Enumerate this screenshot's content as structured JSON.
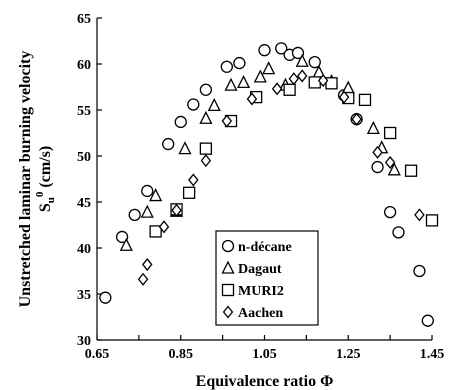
{
  "chart_data": {
    "type": "scatter",
    "xlabel": "Equivalence ratio Φ",
    "ylabel_line1": "Unstretched laminar burning velocity",
    "ylabel_line2_main": "S",
    "ylabel_line2_sub": "u",
    "ylabel_line2_sup": "0",
    "ylabel_line2_rest": " (cm/s)",
    "xlim": [
      0.65,
      1.45
    ],
    "ylim": [
      30,
      65
    ],
    "x_ticks": [
      "0.65",
      "0.85",
      "1.05",
      "1.25",
      "1.45"
    ],
    "y_ticks": [
      "30",
      "35",
      "40",
      "45",
      "50",
      "55",
      "60",
      "65"
    ],
    "legend_position": "lower-right",
    "series": [
      {
        "name": "n-décane",
        "marker": "circle",
        "points": [
          [
            0.67,
            34.6
          ],
          [
            0.71,
            41.2
          ],
          [
            0.74,
            43.6
          ],
          [
            0.77,
            46.2
          ],
          [
            0.82,
            51.3
          ],
          [
            0.85,
            53.7
          ],
          [
            0.88,
            55.6
          ],
          [
            0.91,
            57.2
          ],
          [
            0.96,
            59.7
          ],
          [
            0.99,
            60.1
          ],
          [
            1.05,
            61.5
          ],
          [
            1.09,
            61.7
          ],
          [
            1.11,
            61.0
          ],
          [
            1.13,
            61.2
          ],
          [
            1.17,
            60.2
          ],
          [
            1.24,
            56.6
          ],
          [
            1.27,
            54.0
          ],
          [
            1.32,
            48.8
          ],
          [
            1.35,
            43.9
          ],
          [
            1.37,
            41.7
          ],
          [
            1.42,
            37.5
          ],
          [
            1.44,
            32.1
          ]
        ]
      },
      {
        "name": "Dagaut",
        "marker": "triangle",
        "points": [
          [
            0.72,
            40.3
          ],
          [
            0.77,
            43.9
          ],
          [
            0.79,
            45.7
          ],
          [
            0.84,
            44.0
          ],
          [
            0.86,
            50.8
          ],
          [
            0.91,
            54.1
          ],
          [
            0.93,
            55.5
          ],
          [
            0.97,
            57.7
          ],
          [
            1.0,
            58.0
          ],
          [
            1.04,
            58.6
          ],
          [
            1.06,
            59.5
          ],
          [
            1.1,
            57.7
          ],
          [
            1.14,
            60.3
          ],
          [
            1.18,
            59.1
          ],
          [
            1.21,
            58.1
          ],
          [
            1.25,
            57.4
          ],
          [
            1.31,
            53.0
          ],
          [
            1.33,
            50.9
          ],
          [
            1.36,
            48.5
          ]
        ]
      },
      {
        "name": "MURI2",
        "marker": "square",
        "points": [
          [
            0.79,
            41.8
          ],
          [
            0.84,
            44.2
          ],
          [
            0.87,
            46.0
          ],
          [
            0.91,
            50.8
          ],
          [
            0.97,
            53.8
          ],
          [
            1.03,
            56.4
          ],
          [
            1.11,
            57.2
          ],
          [
            1.17,
            58.0
          ],
          [
            1.21,
            57.9
          ],
          [
            1.25,
            56.3
          ],
          [
            1.29,
            56.1
          ],
          [
            1.35,
            52.5
          ],
          [
            1.4,
            48.4
          ],
          [
            1.45,
            43.0
          ]
        ]
      },
      {
        "name": "Aachen",
        "marker": "diamond",
        "points": [
          [
            0.76,
            36.6
          ],
          [
            0.77,
            38.2
          ],
          [
            0.81,
            42.3
          ],
          [
            0.84,
            44.1
          ],
          [
            0.88,
            47.4
          ],
          [
            0.91,
            49.5
          ],
          [
            0.96,
            53.8
          ],
          [
            1.02,
            56.2
          ],
          [
            1.08,
            57.3
          ],
          [
            1.12,
            58.4
          ],
          [
            1.14,
            58.7
          ],
          [
            1.19,
            58.2
          ],
          [
            1.24,
            56.4
          ],
          [
            1.27,
            54.0
          ],
          [
            1.32,
            50.4
          ],
          [
            1.35,
            49.3
          ],
          [
            1.42,
            43.6
          ]
        ]
      }
    ]
  }
}
